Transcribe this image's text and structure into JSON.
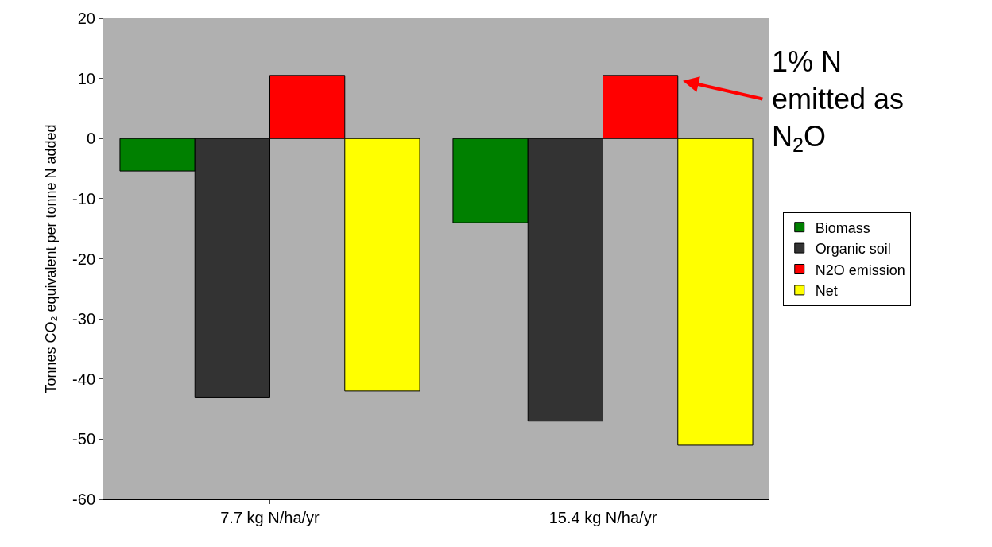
{
  "chart_data": {
    "type": "bar",
    "ylabel": "Tonnes CO₂ equivalent per tonne N added",
    "categories": [
      "7.7 kg N/ha/yr",
      "15.4 kg N/ha/yr"
    ],
    "series": [
      {
        "name": "Biomass",
        "color": "#008000",
        "values": [
          -5.4,
          -14.0
        ]
      },
      {
        "name": "Organic soil",
        "color": "#333333",
        "values": [
          -43,
          -47
        ]
      },
      {
        "name": "N2O emission",
        "color": "#ff0000",
        "values": [
          10.5,
          10.5
        ]
      },
      {
        "name": "Net",
        "color": "#ffff00",
        "values": [
          -42,
          -51
        ]
      }
    ],
    "ylim": [
      -60,
      20
    ],
    "yticks": [
      -60,
      -50,
      -40,
      -30,
      -20,
      -10,
      0,
      10,
      20
    ],
    "grid": false,
    "legend": "right",
    "annotations": [
      "1% N emitted as N$_{2}$O"
    ]
  }
}
